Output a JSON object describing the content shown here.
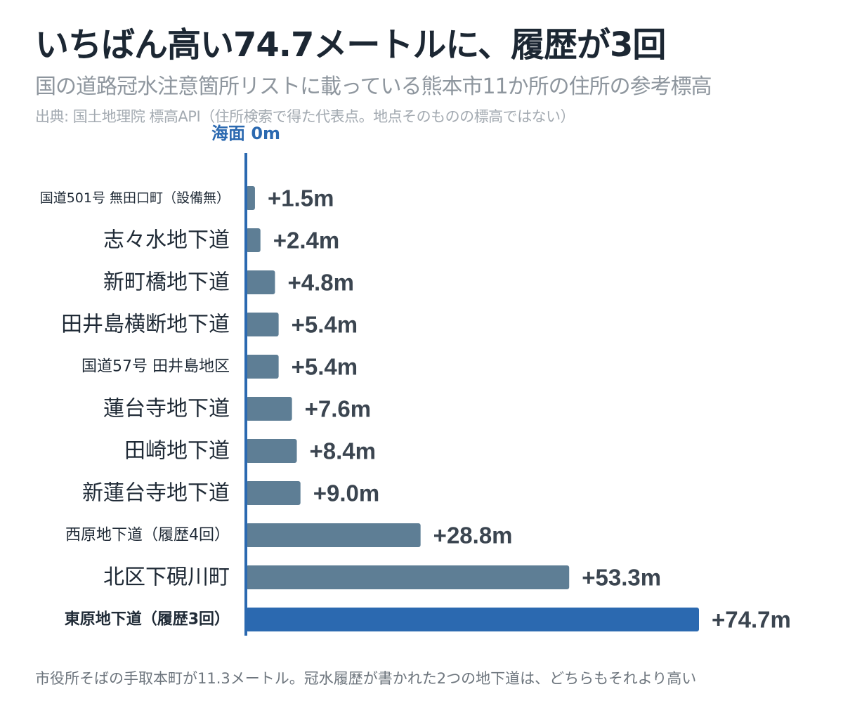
{
  "header": {
    "title": "いちばん高い74.7メートルに、履歴が3回",
    "subtitle": "国の道路冠水注意箇所リストに載っている熊本市11か所の住所の参考標高",
    "source": "出典: 国土地理院 標高API（住所検索で得た代表点。地点そのものの標高ではない）"
  },
  "footer": {
    "note": "市役所そばの手取本町が11.3メートル。冠水履歴が書かれた2つの地下道は、どちらもそれより高い"
  },
  "colors": {
    "bar": "#5e7e95",
    "highlight_bar": "#2b69b0",
    "axis": "#2b69b0"
  },
  "chart_data": {
    "type": "bar",
    "orientation": "horizontal",
    "zero_label": "海面 0m",
    "unit": "m",
    "categories": [
      "国道501号 無田口町（設備無）",
      "志々水地下道",
      "新町橋地下道",
      "田井島横断地下道",
      "国道57号 田井島地区",
      "蓮台寺地下道",
      "田崎地下道",
      "新蓮台寺地下道",
      "西原地下道（履歴4回）",
      "北区下硯川町",
      "東原地下道（履歴3回）"
    ],
    "values": [
      1.5,
      2.4,
      4.8,
      5.4,
      5.4,
      7.6,
      8.4,
      9.0,
      28.8,
      53.3,
      74.7
    ],
    "value_labels": [
      "+1.5m",
      "+2.4m",
      "+4.8m",
      "+5.4m",
      "+5.4m",
      "+7.6m",
      "+8.4m",
      "+9.0m",
      "+28.8m",
      "+53.3m",
      "+74.7m"
    ],
    "highlight_index": 10,
    "xlim": [
      0,
      74.7
    ]
  }
}
